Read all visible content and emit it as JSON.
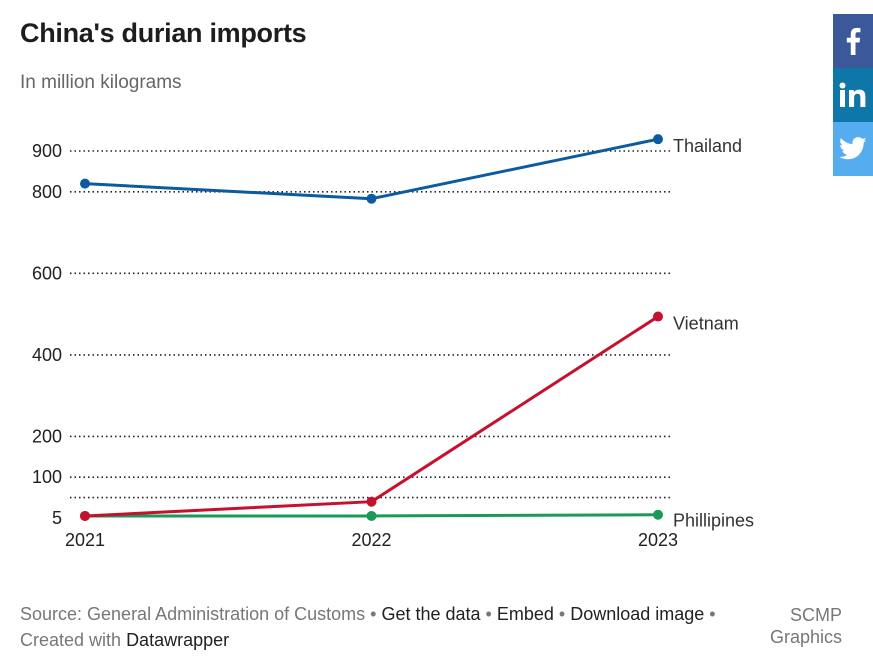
{
  "header": {
    "title": "China's durian imports",
    "subtitle": "In million kilograms"
  },
  "footer": {
    "source_text": "Source: General Administration of Customs",
    "sep": " • ",
    "get_data": "Get the data",
    "embed": "Embed",
    "download_image": "Download image",
    "created_with": "Created with ",
    "datawrapper": "Datawrapper",
    "credit": "SCMP Graphics"
  },
  "share": {
    "facebook_icon": "facebook-icon",
    "linkedin_icon": "linkedin-icon",
    "twitter_icon": "twitter-icon",
    "facebook_color": "#3b5998",
    "linkedin_color": "#0e76a8",
    "twitter_color": "#55acee"
  },
  "chart_data": {
    "type": "line",
    "x": [
      "2021",
      "2022",
      "2023"
    ],
    "y_ticks": [
      5,
      100,
      200,
      400,
      600,
      800,
      900
    ],
    "ylim": [
      0,
      900
    ],
    "grid": true,
    "grid_style": "dotted",
    "legend": "inline labels at line ends",
    "series": [
      {
        "name": "Thailand",
        "color": "#0c5aa0",
        "values": [
          820,
          783,
          929
        ]
      },
      {
        "name": "Vietnam",
        "color": "#c5112e",
        "values": [
          5,
          40,
          494
        ]
      },
      {
        "name": "Phillipines",
        "color": "#1a9a57",
        "values": [
          5,
          5,
          8
        ]
      }
    ]
  }
}
